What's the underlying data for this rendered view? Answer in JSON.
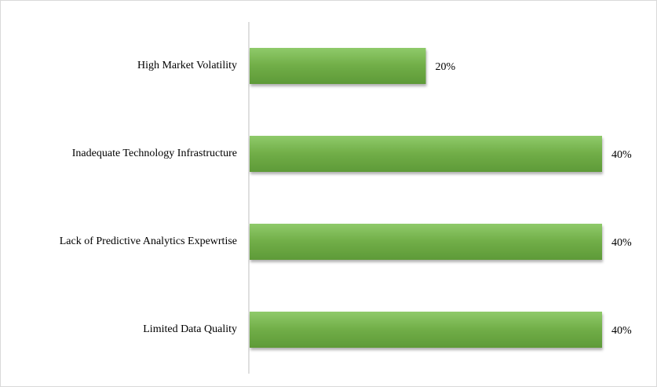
{
  "chart_data": {
    "type": "bar",
    "orientation": "horizontal",
    "categories": [
      "High Market Volatility",
      "Inadequate Technology Infrastructure",
      "Lack of Predictive Analytics Expewrtise",
      "Limited Data Quality"
    ],
    "values": [
      20,
      40,
      40,
      40
    ],
    "value_labels": [
      "20%",
      "40%",
      "40%",
      "40%"
    ],
    "color": "#70ad47"
  }
}
